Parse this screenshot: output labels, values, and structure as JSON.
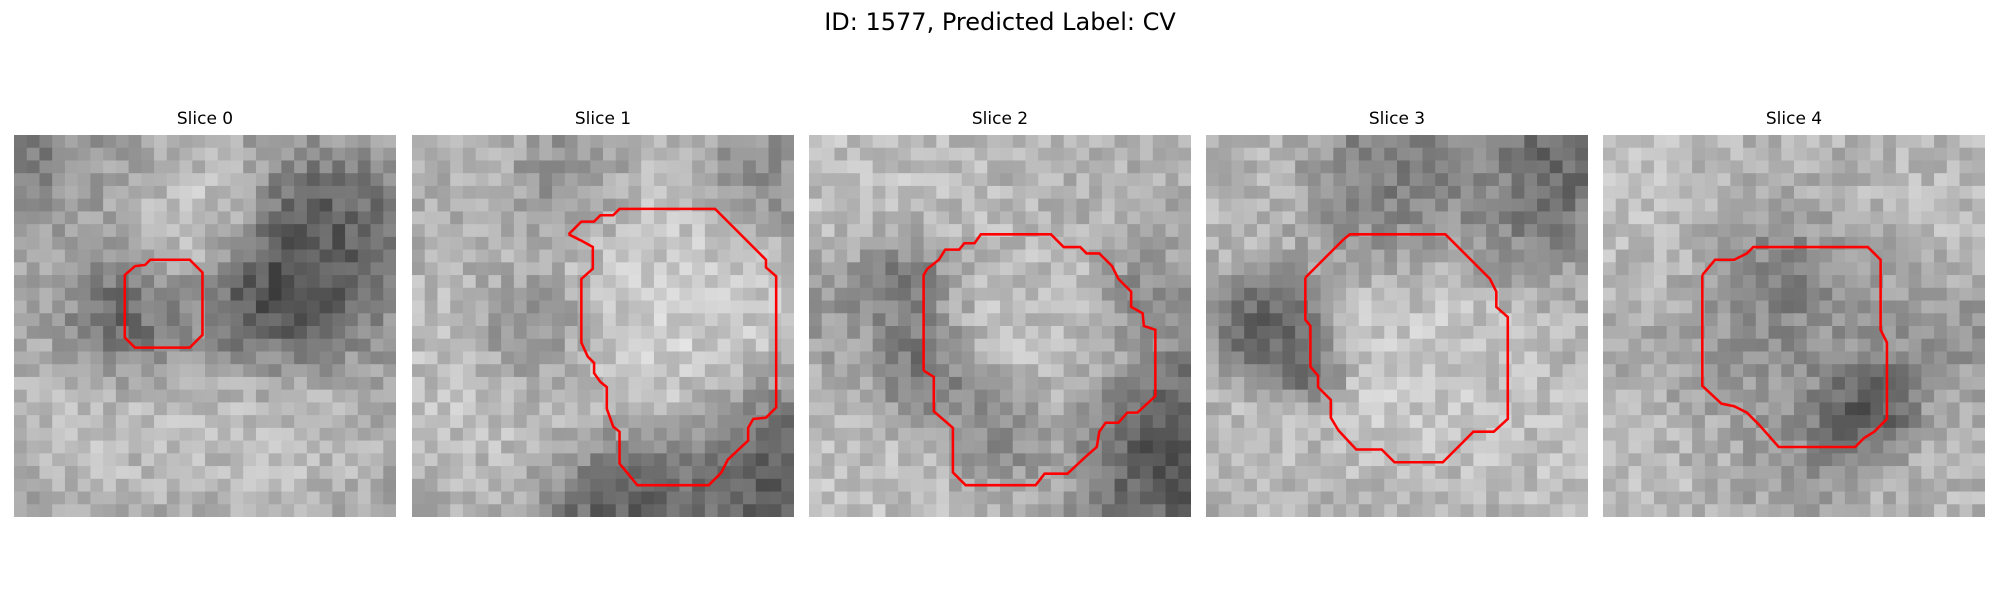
{
  "figure": {
    "title": "ID: 1577, Predicted Label: CV"
  },
  "slices": [
    {
      "title": "Slice 0",
      "contour": [
        [
          8.7,
          13.5
        ],
        [
          8.7,
          11
        ],
        [
          9.5,
          10.3
        ],
        [
          10.3,
          10.2
        ],
        [
          10.7,
          9.8
        ],
        [
          13.8,
          9.8
        ],
        [
          14.8,
          10.8
        ],
        [
          14.8,
          15.7
        ],
        [
          13.8,
          16.7
        ],
        [
          9.5,
          16.7
        ],
        [
          8.7,
          15.9
        ],
        [
          8.7,
          13.5
        ]
      ],
      "blobs": [
        {
          "x": 4.0,
          "y": 4.0,
          "r": 4.5,
          "v": 0.6
        },
        {
          "x": 14.0,
          "y": 7.0,
          "r": 3.2,
          "v": 0.85
        },
        {
          "x": 8.0,
          "y": 14.5,
          "r": 2.6,
          "v": 0.2
        },
        {
          "x": 12.3,
          "y": 14.0,
          "r": 2.0,
          "v": 0.55
        },
        {
          "x": 20.5,
          "y": 13.0,
          "r": 3.6,
          "v": 0.12
        },
        {
          "x": 24.5,
          "y": 8.0,
          "r": 3.0,
          "v": 0.28
        },
        {
          "x": 20.0,
          "y": 22.5,
          "r": 4.5,
          "v": 0.8
        },
        {
          "x": 7.0,
          "y": 22.5,
          "r": 4.0,
          "v": 0.78
        },
        {
          "x": 2.0,
          "y": 13.0,
          "r": 3.0,
          "v": 0.7
        },
        {
          "x": 1.0,
          "y": 1.0,
          "r": 2.0,
          "v": 0.3
        }
      ]
    },
    {
      "title": "Slice 1",
      "contour": [
        [
          12.3,
          7.8
        ],
        [
          13.3,
          6.8
        ],
        [
          14.3,
          6.8
        ],
        [
          14.8,
          6.3
        ],
        [
          15.8,
          6.3
        ],
        [
          16.3,
          5.8
        ],
        [
          23.8,
          5.8
        ],
        [
          27.8,
          9.8
        ],
        [
          27.8,
          10.4
        ],
        [
          28.6,
          11.1
        ],
        [
          28.6,
          21.4
        ],
        [
          27.8,
          22.2
        ],
        [
          26.8,
          22.3
        ],
        [
          26.4,
          23.0
        ],
        [
          26.4,
          24.0
        ],
        [
          24.8,
          25.5
        ],
        [
          24.3,
          26.5
        ],
        [
          23.3,
          27.5
        ],
        [
          17.7,
          27.5
        ],
        [
          16.3,
          25.8
        ],
        [
          16.3,
          23.3
        ],
        [
          15.8,
          22.9
        ],
        [
          15.3,
          21.5
        ],
        [
          15.3,
          19.8
        ],
        [
          14.8,
          19.4
        ],
        [
          14.3,
          18.7
        ],
        [
          14.3,
          17.9
        ],
        [
          13.8,
          17.4
        ],
        [
          13.3,
          16.3
        ],
        [
          13.3,
          11.3
        ],
        [
          14.2,
          10.5
        ],
        [
          14.2,
          8.8
        ],
        [
          13.3,
          8.3
        ],
        [
          12.3,
          7.8
        ]
      ],
      "blobs": [
        {
          "x": 20.5,
          "y": 16.0,
          "r": 7.5,
          "v": 0.88
        },
        {
          "x": 14.5,
          "y": 11.0,
          "r": 4.5,
          "v": 0.78
        },
        {
          "x": 6.0,
          "y": 6.0,
          "r": 5.5,
          "v": 0.7
        },
        {
          "x": 4.0,
          "y": 18.0,
          "r": 5.5,
          "v": 0.8
        },
        {
          "x": 17.0,
          "y": 28.5,
          "r": 3.5,
          "v": 0.18
        },
        {
          "x": 28.0,
          "y": 26.0,
          "r": 4.0,
          "v": 0.12
        },
        {
          "x": 9.5,
          "y": 15.0,
          "r": 2.8,
          "v": 0.25
        },
        {
          "x": 12.0,
          "y": 4.5,
          "r": 2.5,
          "v": 0.35
        },
        {
          "x": 28.5,
          "y": 3.0,
          "r": 3.0,
          "v": 0.5
        }
      ]
    },
    {
      "title": "Slice 2",
      "contour": [
        [
          9.0,
          18.5
        ],
        [
          9.0,
          11.0
        ],
        [
          9.3,
          10.5
        ],
        [
          10.2,
          9.8
        ],
        [
          10.7,
          9.0
        ],
        [
          11.8,
          9.0
        ],
        [
          12.2,
          8.5
        ],
        [
          13.0,
          8.5
        ],
        [
          13.5,
          7.8
        ],
        [
          19.0,
          7.8
        ],
        [
          20.0,
          8.8
        ],
        [
          21.3,
          8.8
        ],
        [
          21.8,
          9.3
        ],
        [
          22.8,
          9.3
        ],
        [
          23.8,
          10.3
        ],
        [
          24.3,
          11.3
        ],
        [
          25.3,
          12.3
        ],
        [
          25.3,
          13.5
        ],
        [
          26.2,
          14.0
        ],
        [
          26.3,
          15.0
        ],
        [
          27.2,
          15.3
        ],
        [
          27.2,
          20.5
        ],
        [
          25.8,
          21.8
        ],
        [
          25.0,
          21.8
        ],
        [
          24.3,
          22.6
        ],
        [
          23.3,
          22.6
        ],
        [
          22.8,
          23.3
        ],
        [
          22.6,
          24.5
        ],
        [
          21.8,
          25.2
        ],
        [
          20.3,
          26.6
        ],
        [
          18.5,
          26.6
        ],
        [
          17.8,
          27.5
        ],
        [
          12.3,
          27.5
        ],
        [
          11.3,
          26.5
        ],
        [
          11.3,
          23.0
        ],
        [
          9.8,
          21.7
        ],
        [
          9.8,
          19.0
        ],
        [
          9.0,
          18.5
        ]
      ],
      "blobs": [
        {
          "x": 17.5,
          "y": 17.0,
          "r": 7.0,
          "v": 0.8
        },
        {
          "x": 9.0,
          "y": 19.0,
          "r": 2.5,
          "v": 0.15
        },
        {
          "x": 4.0,
          "y": 26.0,
          "r": 5.0,
          "v": 0.8
        },
        {
          "x": 27.5,
          "y": 24.0,
          "r": 4.0,
          "v": 0.12
        },
        {
          "x": 6.0,
          "y": 4.0,
          "r": 5.0,
          "v": 0.8
        },
        {
          "x": 22.5,
          "y": 3.5,
          "r": 4.5,
          "v": 0.7
        },
        {
          "x": 7.5,
          "y": 11.5,
          "r": 2.4,
          "v": 0.22
        },
        {
          "x": 14.5,
          "y": 23.5,
          "r": 2.4,
          "v": 0.35
        },
        {
          "x": 26.0,
          "y": 12.5,
          "r": 2.0,
          "v": 0.4
        },
        {
          "x": 1.5,
          "y": 14.0,
          "r": 2.5,
          "v": 0.55
        }
      ]
    },
    {
      "title": "Slice 3",
      "contour": [
        [
          7.8,
          11.2
        ],
        [
          10.8,
          8.2
        ],
        [
          11.3,
          7.8
        ],
        [
          18.8,
          7.8
        ],
        [
          22.3,
          11.3
        ],
        [
          22.8,
          12.3
        ],
        [
          22.8,
          13.5
        ],
        [
          23.7,
          14.3
        ],
        [
          23.7,
          22.3
        ],
        [
          22.6,
          23.3
        ],
        [
          21.0,
          23.3
        ],
        [
          19.8,
          24.5
        ],
        [
          18.6,
          25.7
        ],
        [
          14.8,
          25.7
        ],
        [
          13.8,
          24.7
        ],
        [
          11.8,
          24.7
        ],
        [
          10.4,
          23.2
        ],
        [
          9.8,
          22.2
        ],
        [
          9.8,
          20.8
        ],
        [
          8.8,
          19.8
        ],
        [
          8.8,
          18.9
        ],
        [
          8.2,
          18.2
        ],
        [
          8.2,
          15.0
        ],
        [
          7.8,
          14.5
        ],
        [
          7.8,
          11.2
        ]
      ],
      "blobs": [
        {
          "x": 15.5,
          "y": 15.5,
          "r": 7.0,
          "v": 0.85
        },
        {
          "x": 5.5,
          "y": 15.0,
          "r": 2.5,
          "v": 0.1
        },
        {
          "x": 8.0,
          "y": 18.5,
          "r": 1.6,
          "v": 0.15
        },
        {
          "x": 14.0,
          "y": 5.0,
          "r": 4.0,
          "v": 0.35
        },
        {
          "x": 24.0,
          "y": 7.0,
          "r": 3.0,
          "v": 0.4
        },
        {
          "x": 3.0,
          "y": 25.0,
          "r": 4.0,
          "v": 0.75
        },
        {
          "x": 26.5,
          "y": 25.0,
          "r": 4.0,
          "v": 0.78
        },
        {
          "x": 3.0,
          "y": 4.0,
          "r": 4.0,
          "v": 0.75
        },
        {
          "x": 27.5,
          "y": 2.0,
          "r": 2.5,
          "v": 0.3
        }
      ]
    },
    {
      "title": "Slice 4",
      "contour": [
        [
          7.8,
          11.0
        ],
        [
          8.8,
          9.8
        ],
        [
          10.3,
          9.8
        ],
        [
          11.3,
          9.3
        ],
        [
          11.8,
          8.8
        ],
        [
          20.8,
          8.8
        ],
        [
          21.8,
          9.8
        ],
        [
          21.8,
          15.3
        ],
        [
          22.3,
          16.3
        ],
        [
          22.3,
          22.3
        ],
        [
          21.3,
          23.3
        ],
        [
          20.5,
          23.8
        ],
        [
          19.8,
          24.5
        ],
        [
          13.8,
          24.5
        ],
        [
          12.3,
          22.8
        ],
        [
          11.3,
          21.8
        ],
        [
          10.3,
          21.3
        ],
        [
          9.3,
          21.1
        ],
        [
          7.8,
          19.7
        ],
        [
          7.8,
          11.0
        ]
      ],
      "blobs": [
        {
          "x": 15.0,
          "y": 16.5,
          "r": 6.5,
          "v": 0.55
        },
        {
          "x": 21.5,
          "y": 21.0,
          "r": 1.8,
          "v": 0.05
        },
        {
          "x": 20.0,
          "y": 22.5,
          "r": 2.2,
          "v": 0.2
        },
        {
          "x": 4.0,
          "y": 6.0,
          "r": 5.0,
          "v": 0.8
        },
        {
          "x": 26.0,
          "y": 5.0,
          "r": 5.0,
          "v": 0.78
        },
        {
          "x": 15.0,
          "y": 3.0,
          "r": 3.5,
          "v": 0.72
        },
        {
          "x": 4.0,
          "y": 26.0,
          "r": 4.5,
          "v": 0.78
        },
        {
          "x": 26.0,
          "y": 27.0,
          "r": 4.5,
          "v": 0.75
        },
        {
          "x": 14.0,
          "y": 11.0,
          "r": 2.5,
          "v": 0.35
        },
        {
          "x": 26.5,
          "y": 16.0,
          "r": 2.5,
          "v": 0.55
        }
      ]
    }
  ]
}
